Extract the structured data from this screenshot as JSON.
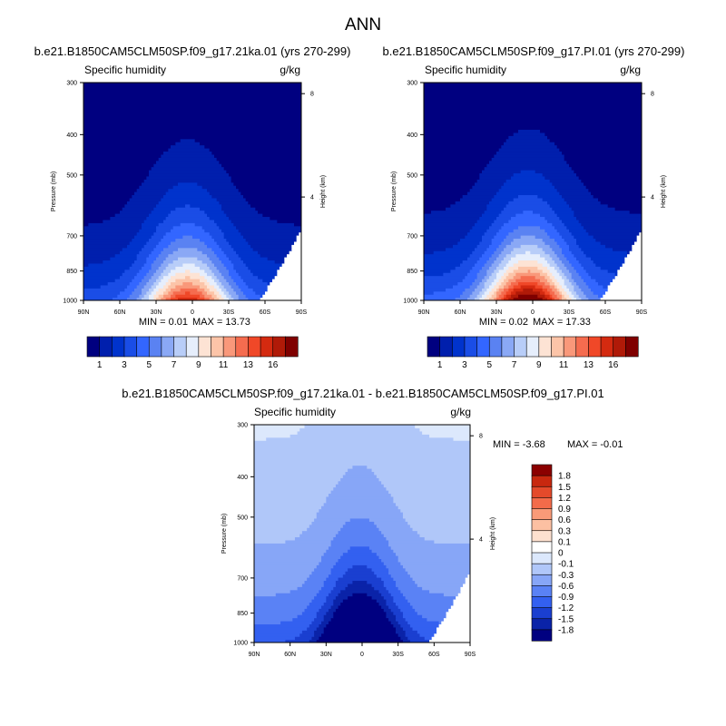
{
  "figure": {
    "title": "ANN"
  },
  "palettes": {
    "moist": [
      "#000080",
      "#001fad",
      "#0033cc",
      "#1a4de6",
      "#3366ff",
      "#5a82f2",
      "#8aa8f5",
      "#b8cdf8",
      "#e6eefc",
      "#fde3d4",
      "#fcc4a8",
      "#f9987a",
      "#f56c4f",
      "#f04828",
      "#d42a10",
      "#b01a08",
      "#7f0000"
    ],
    "moist_labels": [
      "1",
      "3",
      "5",
      "7",
      "9",
      "11",
      "13",
      "16"
    ],
    "diff": [
      "#000080",
      "#0a23a8",
      "#1a3fd0",
      "#3360f0",
      "#5a82f5",
      "#87a6f7",
      "#b0c7f9",
      "#dce8fc",
      "#ffffff",
      "#fde0cf",
      "#fcc0a2",
      "#f99a78",
      "#f36b4a",
      "#e44a2b",
      "#c8280f",
      "#8b0000"
    ],
    "diff_labels": [
      "1.8",
      "1.5",
      "1.2",
      "0.9",
      "0.6",
      "0.3",
      "0.1",
      "0",
      "-0.1",
      "-0.3",
      "-0.6",
      "-0.9",
      "-1.2",
      "-1.5",
      "-1.8"
    ]
  },
  "chart_data": [
    {
      "type": "heatmap",
      "case": "b.e21.B1850CAM5CLM50SP.f09_g17.21ka.01 (yrs 270-299)",
      "title": "Specific humidity",
      "units": "g/kg",
      "ylabel": "Pressure (mb)",
      "ylabel_right": "Height (km)",
      "x_ticks": [
        "90N",
        "60N",
        "30N",
        "0",
        "30S",
        "60S",
        "90S"
      ],
      "y_ticks": [
        "300",
        "400",
        "500",
        "700",
        "850",
        "1000"
      ],
      "height_ticks": [
        "8",
        "4"
      ],
      "xlim": [
        90,
        -90
      ],
      "ylim": [
        1000,
        300
      ],
      "min_label": "MIN =   0.01",
      "max_label": "MAX =  13.73",
      "min": 0.01,
      "max": 13.73,
      "levels": [
        1,
        2,
        3,
        4,
        5,
        6,
        7,
        8,
        9,
        10,
        11,
        12,
        13,
        14,
        15,
        16
      ]
    },
    {
      "type": "heatmap",
      "case": "b.e21.B1850CAM5CLM50SP.f09_g17.PI.01 (yrs 270-299)",
      "title": "Specific humidity",
      "units": "g/kg",
      "ylabel": "Pressure (mb)",
      "ylabel_right": "Height (km)",
      "x_ticks": [
        "90N",
        "60N",
        "30N",
        "0",
        "30S",
        "60S",
        "90S"
      ],
      "y_ticks": [
        "300",
        "400",
        "500",
        "700",
        "850",
        "1000"
      ],
      "height_ticks": [
        "8",
        "4"
      ],
      "xlim": [
        90,
        -90
      ],
      "ylim": [
        1000,
        300
      ],
      "min_label": "MIN =   0.02",
      "max_label": "MAX =  17.33",
      "min": 0.02,
      "max": 17.33,
      "levels": [
        1,
        2,
        3,
        4,
        5,
        6,
        7,
        8,
        9,
        10,
        11,
        12,
        13,
        14,
        15,
        16
      ]
    },
    {
      "type": "heatmap",
      "case": "b.e21.B1850CAM5CLM50SP.f09_g17.21ka.01 - b.e21.B1850CAM5CLM50SP.f09_g17.PI.01",
      "title": "Specific humidity",
      "units": "g/kg",
      "ylabel": "Pressure (mb)",
      "ylabel_right": "Height (km)",
      "x_ticks": [
        "90N",
        "60N",
        "30N",
        "0",
        "30S",
        "60S",
        "90S"
      ],
      "y_ticks": [
        "300",
        "400",
        "500",
        "700",
        "850",
        "1000"
      ],
      "height_ticks": [
        "8",
        "4"
      ],
      "xlim": [
        90,
        -90
      ],
      "ylim": [
        1000,
        300
      ],
      "min_label": "MIN =  -3.68",
      "max_label": "MAX =  -0.01",
      "min": -3.68,
      "max": -0.01,
      "levels": [
        -1.8,
        -1.5,
        -1.2,
        -0.9,
        -0.6,
        -0.3,
        -0.1,
        0,
        0.1,
        0.3,
        0.6,
        0.9,
        1.2,
        1.5,
        1.8
      ]
    }
  ]
}
